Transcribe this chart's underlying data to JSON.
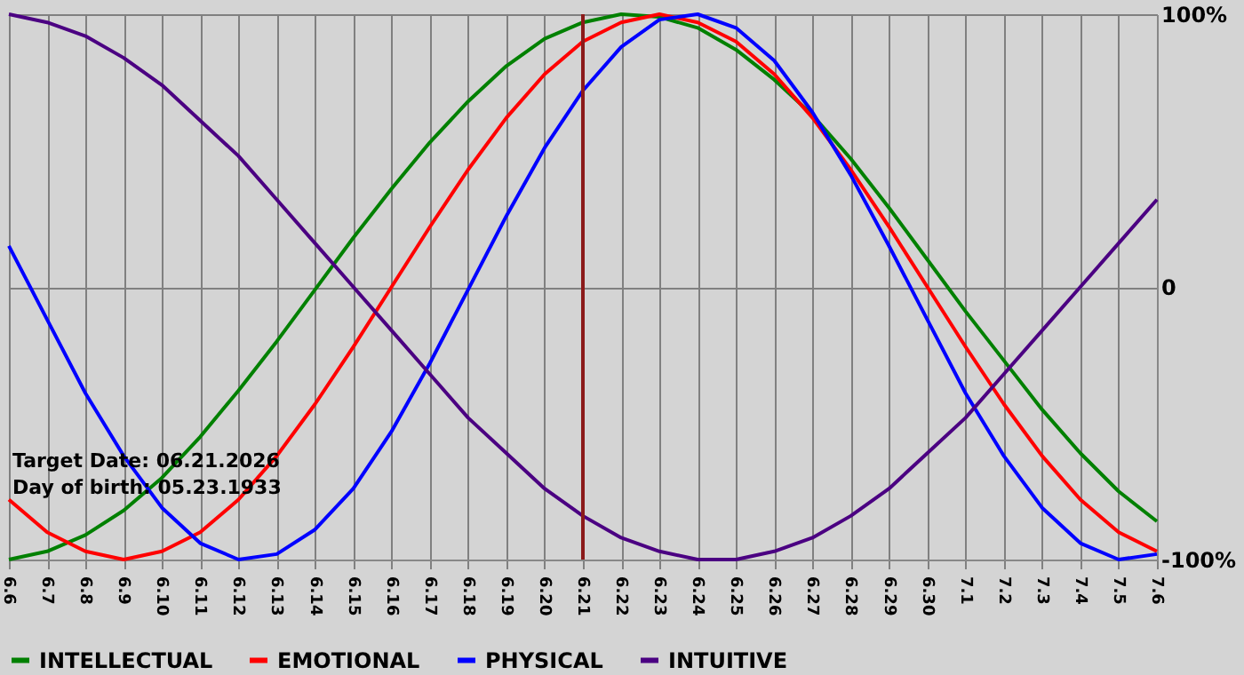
{
  "chart_data": {
    "type": "line",
    "categories": [
      "6.6",
      "6.7",
      "6.8",
      "6.9",
      "6.10",
      "6.11",
      "6.12",
      "6.13",
      "6.14",
      "6.15",
      "6.16",
      "6.17",
      "6.18",
      "6.19",
      "6.20",
      "6.21",
      "6.22",
      "6.23",
      "6.24",
      "6.25",
      "6.26",
      "6.27",
      "6.28",
      "6.29",
      "6.30",
      "7.1",
      "7.2",
      "7.3",
      "7.4",
      "7.5",
      "7.6"
    ],
    "series": [
      {
        "name": "INTELLECTUAL",
        "color": "#008000",
        "values": [
          -100,
          -97,
          -91,
          -82,
          -70,
          -55,
          -38,
          -20,
          -1,
          18,
          36,
          53,
          68,
          81,
          91,
          97,
          100,
          99,
          95,
          87,
          76,
          63,
          47,
          29,
          10,
          -9,
          -27,
          -45,
          -61,
          -75,
          -86
        ]
      },
      {
        "name": "EMOTIONAL",
        "color": "#ff0000",
        "values": [
          -78,
          -90,
          -97,
          -100,
          -97,
          -90,
          -78,
          -62,
          -43,
          -22,
          0,
          22,
          43,
          62,
          78,
          90,
          97,
          100,
          97,
          90,
          78,
          62,
          43,
          22,
          0,
          -22,
          -43,
          -62,
          -78,
          -90,
          -97
        ]
      },
      {
        "name": "PHYSICAL",
        "color": "#0000ff",
        "values": [
          15,
          -12,
          -39,
          -62,
          -81,
          -94,
          -100,
          -98,
          -89,
          -74,
          -53,
          -28,
          -1,
          26,
          51,
          72,
          88,
          98,
          100,
          95,
          83,
          64,
          41,
          15,
          -12,
          -39,
          -62,
          -81,
          -94,
          -100,
          -98
        ]
      },
      {
        "name": "INTUITIVE",
        "color": "#4b0082",
        "values": [
          100,
          97,
          92,
          84,
          74,
          61,
          48,
          32,
          16,
          0,
          -16,
          -32,
          -48,
          -61,
          -74,
          -84,
          -92,
          -97,
          -100,
          -100,
          -97,
          -92,
          -84,
          -74,
          -61,
          -48,
          -32,
          -16,
          0,
          16,
          32
        ]
      }
    ],
    "ylim": [
      -100,
      100
    ],
    "yticks": [
      {
        "value": 100,
        "label": "100%"
      },
      0,
      {
        "value": -100,
        "label": "-100%"
      }
    ],
    "ref_lines": [
      {
        "axis": "x",
        "value": "6.21",
        "color": "#8b1a1a"
      }
    ],
    "annotations": [
      "Target Date: 06.21.2026",
      "Day of birth: 05.23.1933"
    ],
    "grid": true,
    "legend": "bottom",
    "marker": "none",
    "line_style": "solid"
  }
}
